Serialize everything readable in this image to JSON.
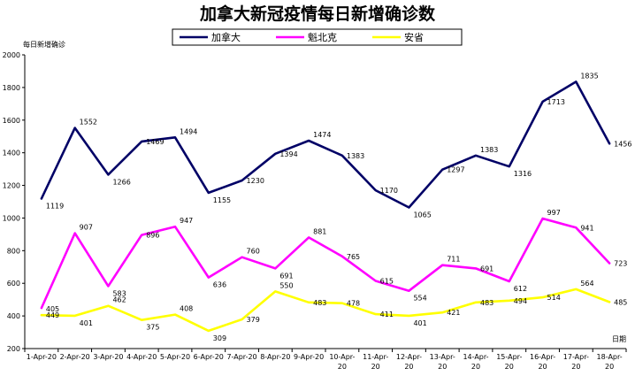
{
  "chart_data": {
    "type": "line",
    "title": "加拿大新冠疫情每日新增确诊数",
    "ylabel": "每日新增确诊",
    "xlabel": "日期",
    "ylim": [
      200,
      2000
    ],
    "yticks": [
      200,
      400,
      600,
      800,
      1000,
      1200,
      1400,
      1600,
      1800,
      2000
    ],
    "grid": false,
    "legend_position": "top-center",
    "categories": [
      [
        "1-Apr-20"
      ],
      [
        "2-Apr-20"
      ],
      [
        "3-Apr-20"
      ],
      [
        "4-Apr-20"
      ],
      [
        "5-Apr-20"
      ],
      [
        "6-Apr-20"
      ],
      [
        "7-Apr-20"
      ],
      [
        "8-Apr-20"
      ],
      [
        "9-Apr-20"
      ],
      [
        "10-Apr-",
        "20"
      ],
      [
        "11-Apr-",
        "20"
      ],
      [
        "12-Apr-",
        "20"
      ],
      [
        "13-Apr-",
        "20"
      ],
      [
        "14-Apr-",
        "20"
      ],
      [
        "15-Apr-",
        "20"
      ],
      [
        "16-Apr-",
        "20"
      ],
      [
        "17-Apr-",
        "20"
      ],
      [
        "18-Apr-",
        "20"
      ]
    ],
    "series": [
      {
        "name": "加拿大",
        "color": "#000066",
        "values": [
          1119,
          1552,
          1266,
          1469,
          1494,
          1155,
          1230,
          1394,
          1474,
          1383,
          1170,
          1065,
          1297,
          1383,
          1316,
          1713,
          1835,
          1456
        ]
      },
      {
        "name": "魁北克",
        "color": "#ff00ff",
        "values": [
          449,
          907,
          583,
          896,
          947,
          636,
          760,
          691,
          881,
          765,
          615,
          554,
          711,
          691,
          612,
          997,
          941,
          723
        ]
      },
      {
        "name": "安省",
        "color": "#ffff00",
        "values": [
          405,
          401,
          462,
          375,
          408,
          309,
          379,
          550,
          483,
          478,
          411,
          401,
          421,
          483,
          494,
          514,
          564,
          485
        ]
      }
    ]
  }
}
